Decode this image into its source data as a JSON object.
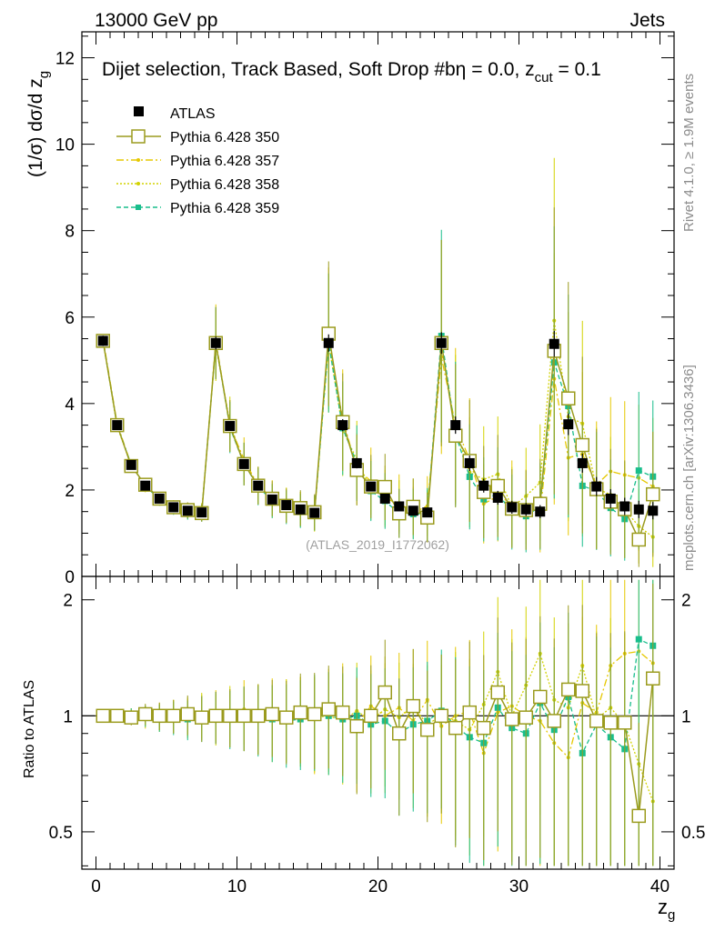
{
  "header": {
    "left": "13000 GeV pp",
    "right": "Jets"
  },
  "plot_title": "Dijet selection, Track Based, Soft Drop #bη = 0.0, z",
  "plot_title_sub": "cut",
  "plot_title_tail": " = 0.1",
  "side_labels": {
    "rivet": "Rivet 4.1.0, ≥ 1.9M events",
    "mcplots": "mcplots.cern.ch [arXiv:1306.3436]"
  },
  "watermark": "(ATLAS_2019_I1772062)",
  "main_ylabel": "(1/σ) dσ/d z",
  "main_ylabel_sub": "g",
  "ratio_ylabel": "Ratio to ATLAS",
  "xlabel": "z",
  "xlabel_sub": "g",
  "legend": [
    "ATLAS",
    "Pythia 6.428 350",
    "Pythia 6.428 357",
    "Pythia 6.428 358",
    "Pythia 6.428 359"
  ],
  "colors": {
    "data": "#000000",
    "p350": "#9b9b1e",
    "p357": "#e6c800",
    "p358": "#d2d200",
    "p359": "#19be8c"
  },
  "chart_data": {
    "type": "scatter",
    "title": "Dijet selection, Track Based, Soft Drop #bη = 0.0, z_cut = 0.1",
    "xlabel": "z_g",
    "ylabel": "(1/σ) dσ/d z_g",
    "xlim": [
      -1,
      41
    ],
    "ylim": [
      0,
      12.6
    ],
    "ratio_ylim": [
      0.4,
      2.3
    ],
    "xticks": [
      0,
      10,
      20,
      30,
      40
    ],
    "yticks": [
      0,
      2,
      4,
      6,
      8,
      10,
      12
    ],
    "ratio_yticks": [
      0.5,
      1,
      2
    ],
    "ratio_ylabel": "Ratio to ATLAS",
    "x": [
      0.5,
      1.5,
      2.5,
      3.5,
      4.5,
      5.5,
      6.5,
      7.5,
      8.5,
      9.5,
      10.5,
      11.5,
      12.5,
      13.5,
      14.5,
      15.5,
      16.5,
      17.5,
      18.5,
      19.5,
      20.5,
      21.5,
      22.5,
      23.5,
      24.5,
      25.5,
      26.5,
      27.5,
      28.5,
      29.5,
      30.5,
      31.5,
      32.5,
      33.5,
      34.5,
      35.5,
      36.5,
      37.5,
      38.5,
      39.5
    ],
    "data": {
      "name": "ATLAS",
      "values": [
        5.45,
        3.5,
        2.58,
        2.1,
        1.8,
        1.6,
        1.52,
        1.48,
        5.4,
        3.48,
        2.6,
        2.1,
        1.78,
        1.65,
        1.55,
        1.47,
        5.4,
        3.5,
        2.62,
        2.08,
        1.8,
        1.62,
        1.52,
        1.48,
        5.4,
        3.5,
        2.62,
        2.1,
        1.82,
        1.6,
        1.55,
        1.5,
        5.38,
        3.52,
        2.62,
        2.08,
        1.8,
        1.62,
        1.55,
        1.52
      ],
      "errors": [
        0.12,
        0.08,
        0.06,
        0.05,
        0.04,
        0.04,
        0.04,
        0.05,
        0.15,
        0.1,
        0.08,
        0.07,
        0.06,
        0.06,
        0.06,
        0.06,
        0.2,
        0.14,
        0.12,
        0.1,
        0.1,
        0.1,
        0.1,
        0.1,
        0.25,
        0.2,
        0.18,
        0.16,
        0.16,
        0.15,
        0.15,
        0.15,
        0.3,
        0.25,
        0.22,
        0.22,
        0.22,
        0.2,
        0.2,
        0.2
      ]
    },
    "series": [
      {
        "name": "Pythia 6.428 350",
        "ratio": [
          1.0,
          1.0,
          0.99,
          1.01,
          1.0,
          1.0,
          1.01,
          0.99,
          1.0,
          1.0,
          1.0,
          1.0,
          1.01,
          0.99,
          1.02,
          1.01,
          1.04,
          1.02,
          0.94,
          1.0,
          1.15,
          0.9,
          1.06,
          0.92,
          1.0,
          0.93,
          1.02,
          0.93,
          1.15,
          0.98,
          0.99,
          1.12,
          0.97,
          1.17,
          1.16,
          0.97,
          0.96,
          0.96,
          0.55,
          1.25
        ]
      },
      {
        "name": "Pythia 6.428 357",
        "ratio": [
          1.01,
          1.01,
          1.0,
          0.99,
          1.0,
          1.0,
          0.99,
          1.0,
          1.01,
          1.0,
          1.04,
          1.0,
          1.02,
          1.0,
          1.0,
          0.98,
          1.02,
          1.04,
          0.95,
          1.06,
          1.0,
          1.05,
          0.97,
          1.1,
          0.94,
          1.0,
          1.03,
          0.8,
          1.02,
          1.06,
          1.0,
          0.97,
          0.85,
          0.78,
          1.08,
          1.02,
          1.35,
          1.45,
          1.47,
          1.37
        ]
      },
      {
        "name": "Pythia 6.428 358",
        "ratio": [
          1.0,
          0.99,
          1.0,
          1.0,
          0.99,
          1.0,
          1.0,
          1.01,
          0.99,
          1.02,
          1.0,
          1.0,
          0.98,
          1.0,
          1.0,
          0.99,
          1.0,
          0.97,
          1.03,
          0.97,
          1.04,
          0.99,
          1.06,
          0.95,
          1.0,
          0.97,
          0.92,
          1.07,
          1.3,
          1.0,
          1.2,
          1.45,
          1.1,
          1.05,
          1.35,
          0.98,
          1.05,
          0.95,
          0.75,
          0.6
        ]
      },
      {
        "name": "Pythia 6.428 359",
        "ratio": [
          1.0,
          1.0,
          1.0,
          1.0,
          0.99,
          0.99,
          0.98,
          0.99,
          1.0,
          0.99,
          1.0,
          0.99,
          0.98,
          0.97,
          0.98,
          1.0,
          1.0,
          0.98,
          1.0,
          0.95,
          0.97,
          0.9,
          0.95,
          0.97,
          1.03,
          0.94,
          0.88,
          0.85,
          1.05,
          0.93,
          0.9,
          1.08,
          0.92,
          1.12,
          0.8,
          0.95,
          0.88,
          0.82,
          1.58,
          1.52
        ]
      }
    ]
  }
}
